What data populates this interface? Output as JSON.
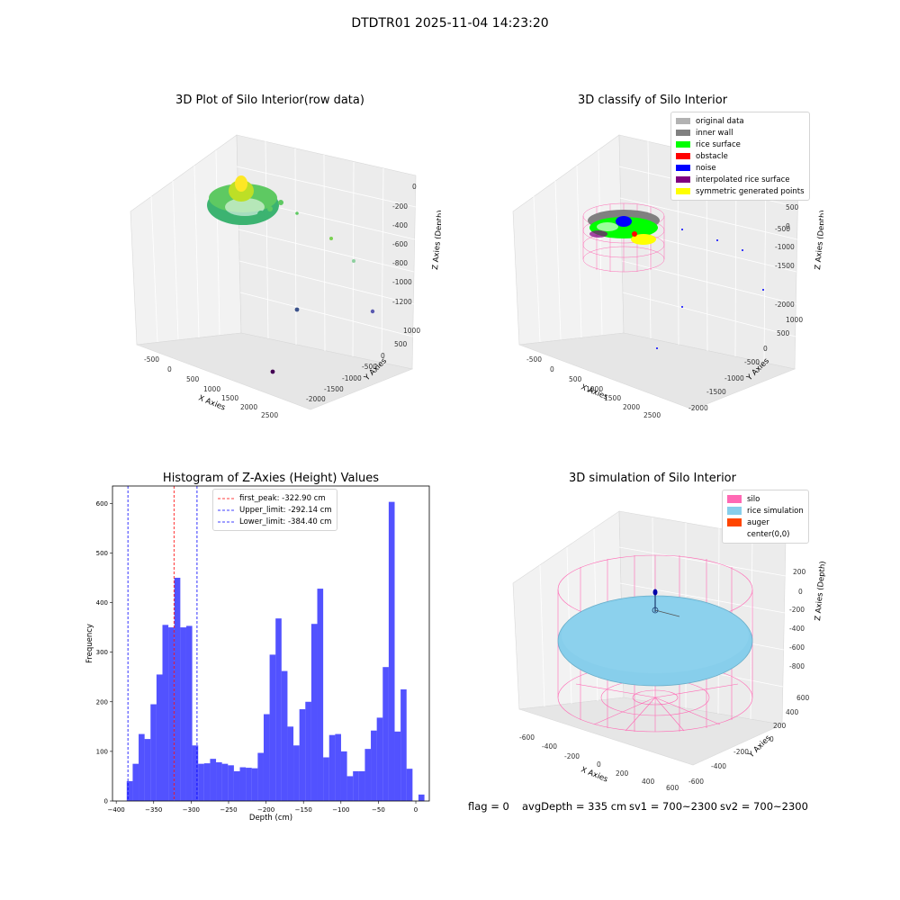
{
  "suptitle": "DTDTR01 2025-11-04 14:23:20",
  "chart_data": [
    {
      "type": "scatter",
      "projection": "3d",
      "title": "3D Plot of Silo Interior(row data)",
      "xlabel": "X Axies",
      "ylabel": "Y Axies",
      "zlabel": "Z Axies (Depth)",
      "x_ticks": [
        "-500",
        "0",
        "500",
        "1000",
        "1500",
        "2000",
        "2500"
      ],
      "y_ticks": [
        "-2000",
        "-1500",
        "-1000",
        "-500",
        "0",
        "500",
        "1000"
      ],
      "z_ticks": [
        "-1200",
        "-1000",
        "-800",
        "-600",
        "-400",
        "-200",
        "0"
      ],
      "series": [
        {
          "points": [
            [
              400,
              -400,
              -50
            ],
            [
              950,
              -500,
              -300
            ],
            [
              1300,
              -700,
              -800
            ],
            [
              1550,
              -1050,
              -1200
            ],
            [
              2000,
              -750,
              -1150
            ],
            [
              1450,
              -1600,
              -1000
            ]
          ]
        }
      ]
    },
    {
      "type": "scatter",
      "projection": "3d",
      "title": "3D classify of Silo Interior",
      "xlabel": "X Axies",
      "ylabel": "Y Axies",
      "zlabel": "Z Axies (Depth)",
      "x_ticks": [
        "-500",
        "0",
        "500",
        "1000",
        "1500",
        "2000",
        "2500"
      ],
      "y_ticks": [
        "-2000",
        "-1500",
        "-1000",
        "-500",
        "0",
        "500",
        "1000"
      ],
      "z_ticks": [
        "-2000",
        "-1500",
        "-1000",
        "-500",
        "0",
        "500",
        "1000"
      ],
      "legend_position": "top-right",
      "legend": [
        {
          "name": "original data",
          "color": "#b2b2b2"
        },
        {
          "name": "inner wall",
          "color": "#808080"
        },
        {
          "name": "rice surface",
          "color": "#00ff00"
        },
        {
          "name": "obstacle",
          "color": "#ff0000"
        },
        {
          "name": "noise",
          "color": "#0000ff"
        },
        {
          "name": "interpolated rice surface",
          "color": "#800080"
        },
        {
          "name": "symmetric generated points",
          "color": "#ffff00"
        }
      ]
    },
    {
      "type": "bar",
      "title": "Histogram of Z-Axies (Height) Values",
      "xlabel": "Depth (cm)",
      "ylabel": "Frequency",
      "xlim": [
        -405,
        18
      ],
      "ylim": [
        0,
        635
      ],
      "x_ticks": [
        -400,
        -350,
        -300,
        -250,
        -200,
        -150,
        -100,
        -50,
        0
      ],
      "y_ticks": [
        0,
        100,
        200,
        300,
        400,
        500,
        600
      ],
      "bin_start": -386,
      "bin_width": 7.95,
      "values": [
        40,
        75,
        135,
        125,
        195,
        255,
        355,
        350,
        450,
        350,
        353,
        112,
        75,
        76,
        85,
        78,
        75,
        72,
        60,
        68,
        67,
        66,
        97,
        175,
        295,
        368,
        262,
        150,
        112,
        185,
        200,
        357,
        428,
        88,
        133,
        135,
        100,
        50,
        60,
        60,
        105,
        142,
        168,
        270,
        603,
        140,
        225,
        65,
        0,
        13
      ],
      "bar_color": "#0000ff",
      "lines": [
        {
          "label": "first_peak: -322.90 cm",
          "x": -322.9,
          "color": "#ff0000"
        },
        {
          "label": "Upper_limit: -292.14 cm",
          "x": -292.14,
          "color": "#0000ff"
        },
        {
          "label": "Lower_limit: -384.40 cm",
          "x": -384.4,
          "color": "#0000ff"
        }
      ],
      "legend_position": "top-center"
    },
    {
      "type": "scatter",
      "projection": "3d",
      "title": "3D simulation of Silo Interior",
      "xlabel": "X Axies",
      "ylabel": "Y Axies",
      "zlabel": "Z Axies (Depth)",
      "x_ticks": [
        "-600",
        "-400",
        "-200",
        "0",
        "200",
        "400",
        "600"
      ],
      "y_ticks": [
        "-600",
        "-400",
        "-200",
        "0",
        "200",
        "400",
        "600"
      ],
      "z_ticks": [
        "-800",
        "-600",
        "-400",
        "-200",
        "0",
        "200"
      ],
      "legend_position": "top-right",
      "legend": [
        {
          "name": "silo",
          "color": "#ff69b4"
        },
        {
          "name": "rice simulation",
          "color": "#87ceeb"
        },
        {
          "name": "auger",
          "color": "#ff4500"
        },
        {
          "name": "center(0,0)",
          "color": "#ffffff"
        }
      ]
    }
  ],
  "status": {
    "flag": "flag = 0",
    "avgDepth": "avgDepth = 335 cm",
    "sv1": "sv1 = 700~2300",
    "sv2": "sv2 = 700~2300"
  }
}
